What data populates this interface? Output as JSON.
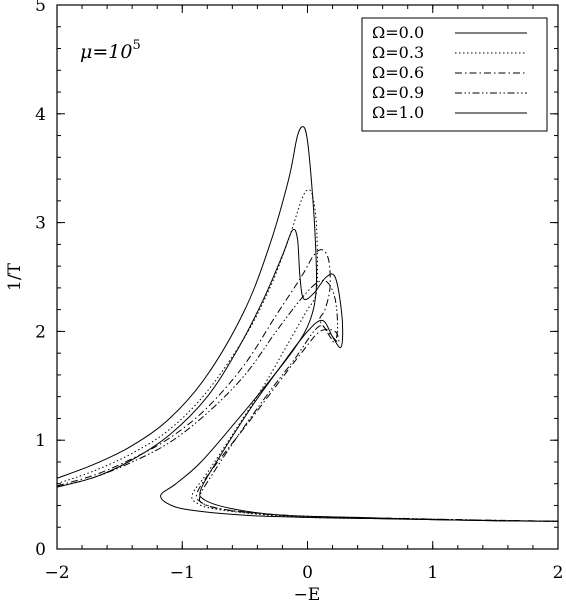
{
  "chart_data": {
    "type": "line",
    "xlabel": "−E",
    "ylabel": "1/T",
    "xlim": [
      -2,
      2
    ],
    "ylim": [
      0,
      5
    ],
    "xticks": [
      "−2",
      "−1",
      "0",
      "1",
      "2"
    ],
    "yticks": [
      "0",
      "1",
      "2",
      "3",
      "4",
      "5"
    ],
    "grid": false,
    "legend_position": "top-right",
    "annotation": {
      "prefix": "μ=10",
      "superscript": "5"
    },
    "series": [
      {
        "name": "Ω=0.0",
        "dash": "solid",
        "x": [
          -2.0,
          -1.7,
          -1.4,
          -1.1,
          -0.8,
          -0.5,
          -0.3,
          -0.15,
          -0.08,
          -0.03,
          0.0,
          0.03,
          0.06,
          0.07,
          0.02,
          -0.1,
          -0.3,
          -0.55,
          -0.85,
          -1.05,
          -1.17,
          -1.12,
          -0.95,
          -0.5,
          0.0,
          0.5,
          1.0,
          1.5,
          2.0
        ],
        "y": [
          0.65,
          0.78,
          0.95,
          1.2,
          1.6,
          2.2,
          2.8,
          3.4,
          3.8,
          3.88,
          3.75,
          3.4,
          2.9,
          2.4,
          2.1,
          1.85,
          1.55,
          1.2,
          0.8,
          0.6,
          0.5,
          0.42,
          0.36,
          0.31,
          0.29,
          0.28,
          0.27,
          0.26,
          0.255
        ]
      },
      {
        "name": "Ω=0.3",
        "dash": "dotted",
        "x": [
          -2.0,
          -1.7,
          -1.4,
          -1.1,
          -0.8,
          -0.5,
          -0.3,
          -0.15,
          -0.05,
          0.0,
          0.04,
          0.07,
          0.08,
          0.07,
          0.03,
          0.0,
          -0.15,
          -0.35,
          -0.6,
          -0.8,
          -0.92,
          -0.88,
          -0.75,
          -0.4,
          0.0,
          0.5,
          1.0,
          1.5,
          2.0
        ],
        "y": [
          0.6,
          0.72,
          0.88,
          1.1,
          1.45,
          1.95,
          2.4,
          2.85,
          3.2,
          3.3,
          3.25,
          3.0,
          2.6,
          2.35,
          2.25,
          2.2,
          1.9,
          1.5,
          1.05,
          0.7,
          0.5,
          0.42,
          0.37,
          0.32,
          0.29,
          0.28,
          0.27,
          0.26,
          0.255
        ]
      },
      {
        "name": "Ω=0.6",
        "dash": "dashdot",
        "x": [
          -2.0,
          -1.7,
          -1.4,
          -1.1,
          -0.8,
          -0.5,
          -0.25,
          -0.05,
          0.05,
          0.12,
          0.17,
          0.18,
          0.14,
          0.1,
          0.2,
          0.25,
          0.22,
          0.1,
          -0.05,
          -0.25,
          -0.5,
          -0.75,
          -0.88,
          -0.85,
          -0.7,
          -0.3,
          0.2,
          0.7,
          1.2,
          2.0
        ],
        "y": [
          0.58,
          0.68,
          0.83,
          1.02,
          1.3,
          1.7,
          2.15,
          2.5,
          2.7,
          2.75,
          2.65,
          2.4,
          2.2,
          2.1,
          1.95,
          1.9,
          2.0,
          2.0,
          1.8,
          1.5,
          1.12,
          0.75,
          0.52,
          0.43,
          0.37,
          0.32,
          0.29,
          0.28,
          0.27,
          0.255
        ]
      },
      {
        "name": "Ω=0.9",
        "dash": "dashdotdot",
        "x": [
          -2.0,
          -1.7,
          -1.4,
          -1.1,
          -0.8,
          -0.5,
          -0.25,
          -0.05,
          0.08,
          0.16,
          0.22,
          0.24,
          0.22,
          0.18,
          0.12,
          0.05,
          -0.1,
          -0.3,
          -0.55,
          -0.78,
          -0.86,
          -0.82,
          -0.6,
          -0.2,
          0.3,
          0.8,
          1.4,
          2.0
        ],
        "y": [
          0.57,
          0.66,
          0.8,
          0.98,
          1.25,
          1.6,
          2.0,
          2.3,
          2.45,
          2.45,
          2.3,
          2.05,
          1.9,
          1.95,
          2.05,
          2.0,
          1.75,
          1.45,
          1.05,
          0.65,
          0.48,
          0.41,
          0.35,
          0.31,
          0.29,
          0.28,
          0.265,
          0.255
        ]
      },
      {
        "name": "Ω=1.0",
        "dash": "solid",
        "x": [
          -2.0,
          -1.7,
          -1.4,
          -1.1,
          -0.8,
          -0.55,
          -0.35,
          -0.2,
          -0.12,
          -0.08,
          -0.06,
          -0.03,
          0.05,
          0.15,
          0.22,
          0.27,
          0.28,
          0.26,
          0.2,
          0.12,
          0.0,
          -0.2,
          -0.45,
          -0.7,
          -0.85,
          -0.82,
          -0.6,
          -0.2,
          0.4,
          1.0,
          1.5,
          2.0
        ],
        "y": [
          0.57,
          0.66,
          0.82,
          1.05,
          1.4,
          1.85,
          2.3,
          2.7,
          2.93,
          2.85,
          2.5,
          2.3,
          2.35,
          2.5,
          2.5,
          2.2,
          1.95,
          1.85,
          1.95,
          2.1,
          2.0,
          1.7,
          1.3,
          0.85,
          0.55,
          0.45,
          0.37,
          0.31,
          0.29,
          0.27,
          0.26,
          0.255
        ]
      }
    ]
  }
}
